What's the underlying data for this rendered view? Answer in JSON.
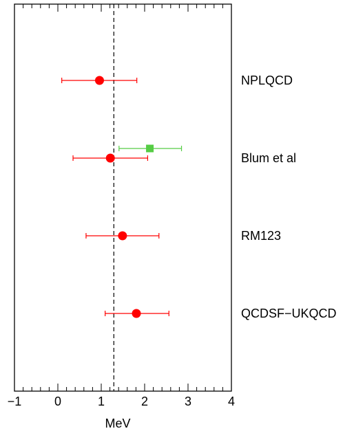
{
  "chart_data": {
    "type": "scatter",
    "title": "",
    "xlabel": "MeV",
    "ylabel": "",
    "xlim": [
      -1,
      4
    ],
    "grid": false,
    "legend": "none",
    "reference_line": {
      "x": 1.29,
      "style": "dashed",
      "color": "#000000"
    },
    "x_ticks": [
      {
        "value": -1,
        "label": "−1"
      },
      {
        "value": 0,
        "label": "0"
      },
      {
        "value": 1,
        "label": "1"
      },
      {
        "value": 2,
        "label": "2"
      },
      {
        "value": 3,
        "label": "3"
      },
      {
        "value": 4,
        "label": "4"
      }
    ],
    "rows": [
      {
        "label": "NPLQCD"
      },
      {
        "label": "Blum et al"
      },
      {
        "label": "RM123"
      },
      {
        "label": "QCDSF−UKQCD"
      }
    ],
    "series": [
      {
        "marker": "circle",
        "color": "#ff0000",
        "points": [
          {
            "row": 0,
            "x": 0.96,
            "xerr_low": 0.87,
            "xerr_high": 0.86
          },
          {
            "row": 1,
            "x": 1.21,
            "xerr_low": 0.86,
            "xerr_high": 0.86
          },
          {
            "row": 2,
            "x": 1.49,
            "xerr_low": 0.84,
            "xerr_high": 0.84
          },
          {
            "row": 3,
            "x": 1.81,
            "xerr_low": 0.72,
            "xerr_high": 0.75
          }
        ]
      },
      {
        "marker": "square",
        "color": "#55cc44",
        "points": [
          {
            "row": 1,
            "offset": "above",
            "x": 2.12,
            "xerr_low": 0.71,
            "xerr_high": 0.73
          }
        ]
      }
    ]
  }
}
